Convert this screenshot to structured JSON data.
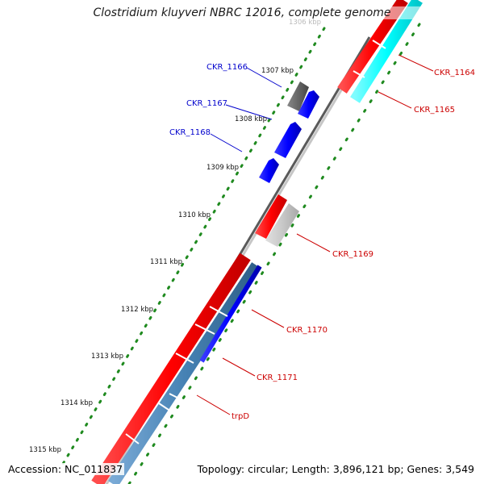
{
  "title": "Clostridium kluyveri NBRC 12016, complete genome",
  "footer": {
    "accession": "Accession: NC_011837",
    "summary": "Topology: circular; Length: 3,896,121 bp; Genes: 3,549"
  },
  "ticks": [
    {
      "id": "1306",
      "label": "1306 kbp"
    },
    {
      "id": "1307",
      "label": "1307 kbp"
    },
    {
      "id": "1308",
      "label": "1308 kbp"
    },
    {
      "id": "1309",
      "label": "1309 kbp"
    },
    {
      "id": "1310",
      "label": "1310 kbp"
    },
    {
      "id": "1311",
      "label": "1311 kbp"
    },
    {
      "id": "1312",
      "label": "1312 kbp"
    },
    {
      "id": "1313",
      "label": "1313 kbp"
    },
    {
      "id": "1314",
      "label": "1314 kbp"
    },
    {
      "id": "1315",
      "label": "1315 kbp"
    }
  ],
  "genes": [
    {
      "label": "CKR_1164",
      "color": "#cc0000"
    },
    {
      "label": "CKR_1165",
      "color": "#cc0000"
    },
    {
      "label": "CKR_1166",
      "color": "#0000cc"
    },
    {
      "label": "CKR_1167",
      "color": "#0000cc"
    },
    {
      "label": "CKR_1168",
      "color": "#0000cc"
    },
    {
      "label": "CKR_1169",
      "color": "#cc0000"
    },
    {
      "label": "CKR_1170",
      "color": "#cc0000"
    },
    {
      "label": "CKR_1171",
      "color": "#cc0000"
    },
    {
      "label": "trpD",
      "color": "#cc0000"
    }
  ],
  "colors": {
    "backbone": "#8c8c8c",
    "forward_gene": "#ff0000",
    "reverse_gene": "#0000ff",
    "rna_or_other": "#00ffff",
    "pseudo_gene": "#666666",
    "light_gene": "#c8c8c8",
    "steel_gene": "#4682b4",
    "tick_dots": "#1f8a1f"
  }
}
